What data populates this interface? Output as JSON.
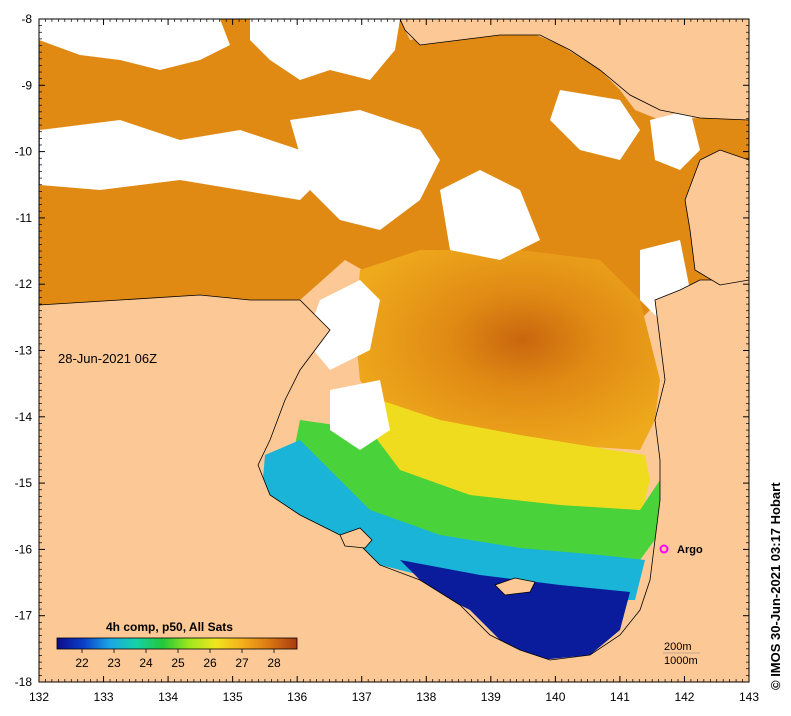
{
  "map": {
    "lon_ticks": [
      "132",
      "133",
      "134",
      "135",
      "136",
      "137",
      "138",
      "139",
      "140",
      "141",
      "142",
      "143"
    ],
    "lat_ticks": [
      "-8",
      "-9",
      "-10",
      "-11",
      "-12",
      "-13",
      "-14",
      "-15",
      "-16",
      "-17",
      "-18"
    ],
    "timestamp": "28-Jun-2021 06Z",
    "colorbar": {
      "title": "4h comp, p50, All Sats",
      "ticks": [
        "22",
        "23",
        "24",
        "25",
        "26",
        "27",
        "28"
      ],
      "stops": [
        "#0c0c8c",
        "#0a3fc8",
        "#1aa6e6",
        "#16d2a8",
        "#22c83a",
        "#9ee61e",
        "#f0e61e",
        "#f5b01c",
        "#dc7a12",
        "#a83a10"
      ]
    },
    "contour_legend": {
      "line1": "200m",
      "line2": "1000m"
    },
    "argo_label": "Argo",
    "credit": "© IMOS 30-Jun-2021 03:17 Hobart",
    "colors": {
      "land": "#fcc896",
      "cloud": "#ffffff",
      "frame": "#000000",
      "argo": "#ff00ff"
    }
  }
}
